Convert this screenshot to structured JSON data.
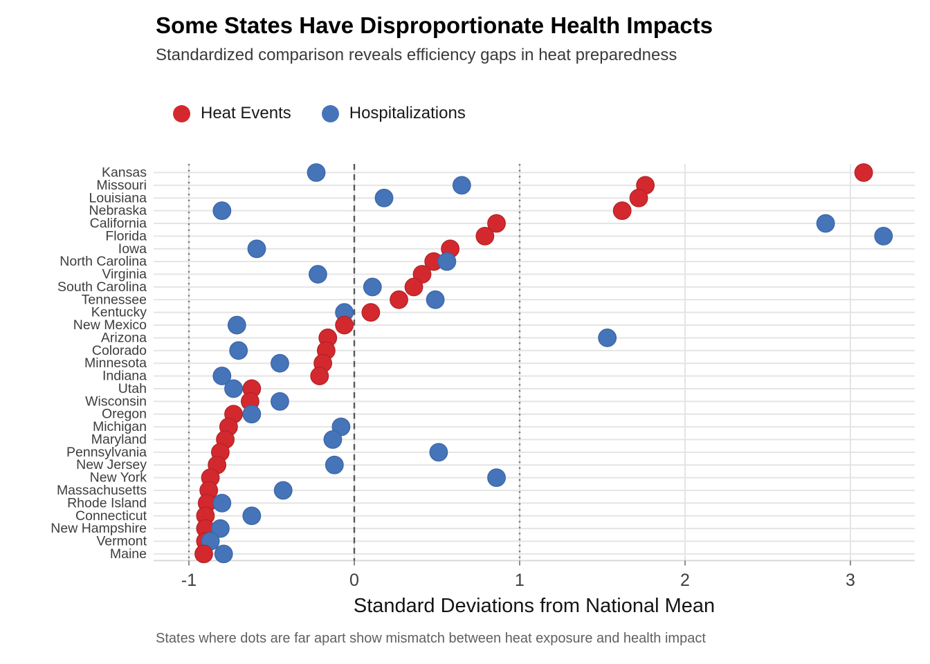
{
  "chart_data": {
    "type": "scatter",
    "variant": "horizontal-dot-plot",
    "title": "Some States Have Disproportionate Health Impacts",
    "subtitle": "Standardized comparison reveals efficiency gaps in heat preparedness",
    "xlabel": "Standard Deviations from National Mean",
    "caption": "States where dots are far apart show mismatch between heat exposure and health impact",
    "x_axis": {
      "ticks": [
        -1,
        0,
        1,
        2,
        3
      ],
      "range": [
        -1.25,
        3.4
      ]
    },
    "reference_lines": {
      "dashed": 0,
      "dotted": [
        -1,
        1
      ]
    },
    "grid": "on",
    "legend_position": "top-left",
    "categories": [
      "Kansas",
      "Missouri",
      "Louisiana",
      "Nebraska",
      "California",
      "Florida",
      "Iowa",
      "North Carolina",
      "Virginia",
      "South Carolina",
      "Tennessee",
      "Kentucky",
      "New Mexico",
      "Arizona",
      "Colorado",
      "Minnesota",
      "Indiana",
      "Utah",
      "Wisconsin",
      "Oregon",
      "Michigan",
      "Maryland",
      "Pennsylvania",
      "New Jersey",
      "New York",
      "Massachusetts",
      "Rhode Island",
      "Connecticut",
      "New Hampshire",
      "Vermont",
      "Maine"
    ],
    "series": [
      {
        "name": "Heat Events",
        "color": "#d3292e",
        "edge": "#b02125",
        "values": [
          3.08,
          1.76,
          1.72,
          1.62,
          0.86,
          0.79,
          0.58,
          0.48,
          0.41,
          0.36,
          0.27,
          0.1,
          -0.06,
          -0.16,
          -0.17,
          -0.19,
          -0.21,
          -0.62,
          -0.63,
          -0.73,
          -0.76,
          -0.78,
          -0.81,
          -0.83,
          -0.87,
          -0.88,
          -0.89,
          -0.9,
          -0.9,
          -0.9,
          -0.91
        ]
      },
      {
        "name": "Hospitalizations",
        "color": "#4574b9",
        "edge": "#3a64a6",
        "values": [
          -0.23,
          0.65,
          0.18,
          -0.8,
          2.85,
          3.2,
          -0.59,
          0.56,
          -0.22,
          0.11,
          0.49,
          -0.06,
          -0.71,
          1.53,
          -0.7,
          -0.45,
          -0.8,
          -0.73,
          -0.45,
          -0.62,
          -0.08,
          -0.13,
          0.51,
          -0.12,
          0.86,
          -0.43,
          -0.8,
          -0.62,
          -0.81,
          -0.87,
          -0.79
        ]
      }
    ],
    "style_colors": {
      "gridline": "#e4e4e4",
      "axis_line": "#d9d9d9",
      "tick_mark": "#8c8c8c",
      "zero_line": "#575757",
      "dotted_line": "#7a7a7a",
      "axis_text": "#3d3d3d"
    }
  }
}
